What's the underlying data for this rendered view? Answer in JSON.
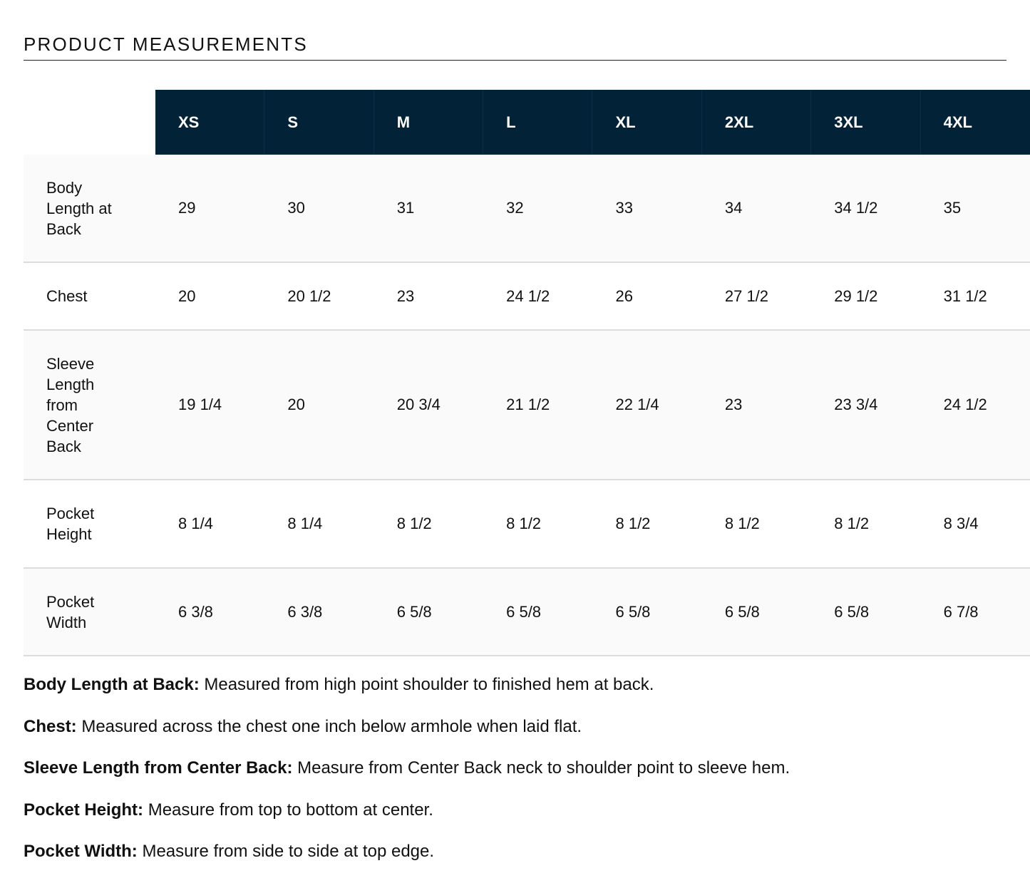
{
  "title": "PRODUCT MEASUREMENTS",
  "header_color": "#022238",
  "sizes": [
    "XS",
    "S",
    "M",
    "L",
    "XL",
    "2XL",
    "3XL",
    "4XL"
  ],
  "rows": [
    {
      "label": "Body Length at Back",
      "values": [
        "29",
        "30",
        "31",
        "32",
        "33",
        "34",
        "34 1/2",
        "35"
      ]
    },
    {
      "label": "Chest",
      "values": [
        "20",
        "20 1/2",
        "23",
        "24 1/2",
        "26",
        "27 1/2",
        "29 1/2",
        "31 1/2"
      ]
    },
    {
      "label": "Sleeve Length from Center Back",
      "values": [
        "19 1/4",
        "20",
        "20 3/4",
        "21 1/2",
        "22 1/4",
        "23",
        "23 3/4",
        "24 1/2"
      ]
    },
    {
      "label": "Pocket Height",
      "values": [
        "8 1/4",
        "8 1/4",
        "8 1/2",
        "8 1/2",
        "8 1/2",
        "8 1/2",
        "8 1/2",
        "8 3/4"
      ]
    },
    {
      "label": "Pocket Width",
      "values": [
        "6 3/8",
        "6 3/8",
        "6 5/8",
        "6 5/8",
        "6 5/8",
        "6 5/8",
        "6 5/8",
        "6 7/8"
      ]
    }
  ],
  "notes": [
    {
      "term": "Body Length at Back:",
      "text": " Measured from high point shoulder to finished hem at back."
    },
    {
      "term": "Chest:",
      "text": " Measured across the chest one inch below armhole when laid flat."
    },
    {
      "term": "Sleeve Length from Center Back:",
      "text": " Measure from Center Back neck to shoulder point to sleeve hem."
    },
    {
      "term": "Pocket Height:",
      "text": " Measure from top to bottom at center."
    },
    {
      "term": "Pocket Width:",
      "text": " Measure from side to side at top edge."
    }
  ]
}
